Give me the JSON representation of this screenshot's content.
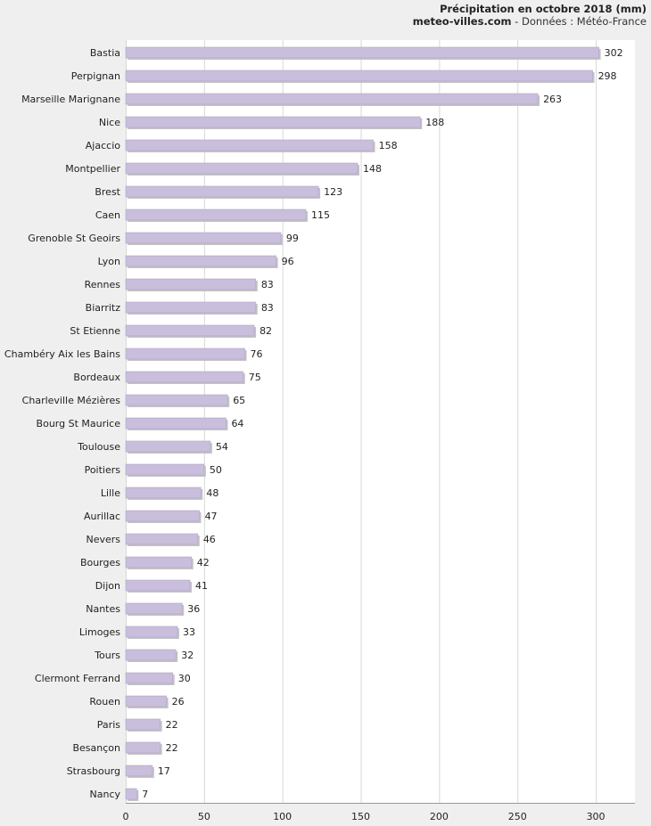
{
  "header": {
    "title": "Précipitation en octobre 2018 (mm)",
    "source_site": "meteo-villes.com",
    "source_rest": " - Données : Météo-France"
  },
  "colors": {
    "bar": "#c9bedb",
    "bar_edge": "#b3a6c8",
    "shadow": "#c4c4c4",
    "plot_bg": "#ffffff",
    "grid": "#d8d8d8"
  },
  "chart_data": {
    "type": "bar",
    "orientation": "horizontal",
    "title": "Précipitation en octobre 2018 (mm)",
    "xlim": [
      0,
      325
    ],
    "ticks": [
      0,
      50,
      100,
      150,
      200,
      250,
      300
    ],
    "grid": true,
    "categories": [
      "Bastia",
      "Perpignan",
      "Marseille Marignane",
      "Nice",
      "Ajaccio",
      "Montpellier",
      "Brest",
      "Caen",
      "Grenoble St Geoirs",
      "Lyon",
      "Rennes",
      "Biarritz",
      "St Etienne",
      "Chambéry Aix les Bains",
      "Bordeaux",
      "Charleville Mézières",
      "Bourg St Maurice",
      "Toulouse",
      "Poitiers",
      "Lille",
      "Aurillac",
      "Nevers",
      "Bourges",
      "Dijon",
      "Nantes",
      "Limoges",
      "Tours",
      "Clermont Ferrand",
      "Rouen",
      "Paris",
      "Besançon",
      "Strasbourg",
      "Nancy"
    ],
    "values": [
      302,
      298,
      263,
      188,
      158,
      148,
      123,
      115,
      99,
      96,
      83,
      83,
      82,
      76,
      75,
      65,
      64,
      54,
      50,
      48,
      47,
      46,
      42,
      41,
      36,
      33,
      32,
      30,
      26,
      22,
      22,
      17,
      7
    ]
  }
}
